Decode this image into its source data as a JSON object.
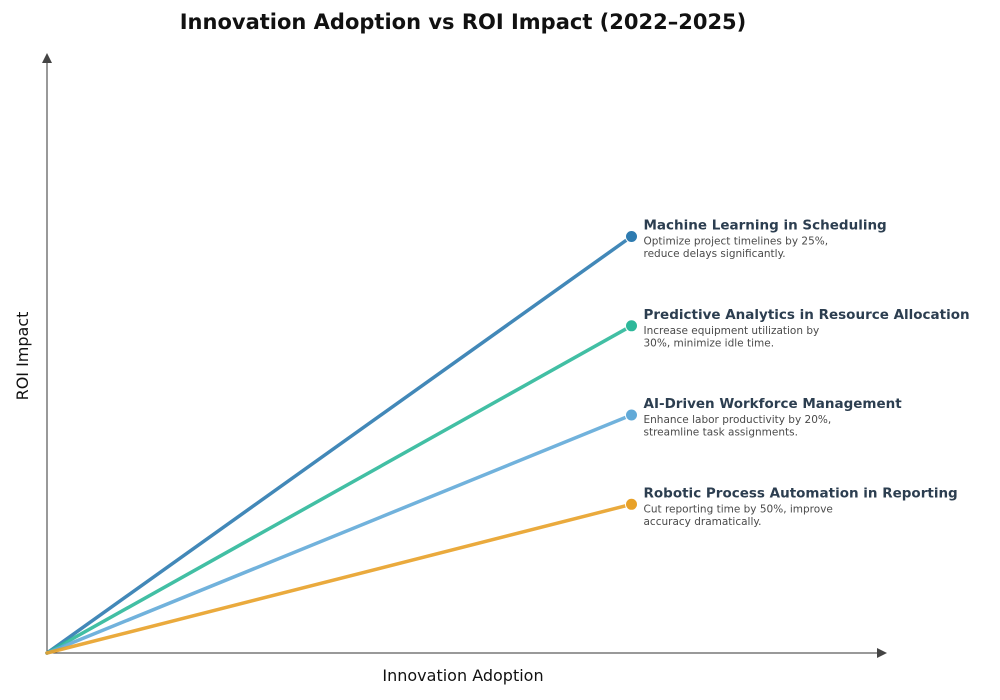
{
  "chart_data": {
    "type": "line",
    "title": "Innovation Adoption vs ROI Impact (2022–2025)",
    "xlabel": "Innovation Adoption",
    "ylabel": "ROI Impact",
    "xlim": [
      0,
      10
    ],
    "ylim": [
      0,
      10
    ],
    "grid": false,
    "series": [
      {
        "name": "Machine Learning in Scheduling",
        "description": [
          "Optimize project timelines by 25%,",
          "reduce delays significantly."
        ],
        "color": "#2e7bb0",
        "points": [
          [
            0,
            0
          ],
          [
            7,
            7
          ]
        ]
      },
      {
        "name": "Predictive Analytics in Resource Allocation",
        "description": [
          "Increase equipment utilization by",
          "30%, minimize idle time."
        ],
        "color": "#2db89a",
        "points": [
          [
            0,
            0
          ],
          [
            7,
            5.5
          ]
        ]
      },
      {
        "name": "AI-Driven Workforce Management",
        "description": [
          "Enhance labor productivity by 20%,",
          "streamline task assignments."
        ],
        "color": "#62aad8",
        "points": [
          [
            0,
            0
          ],
          [
            7,
            4
          ]
        ]
      },
      {
        "name": "Robotic Process Automation in Reporting",
        "description": [
          "Cut reporting time by 50%, improve",
          "accuracy dramatically."
        ],
        "color": "#e8a128",
        "points": [
          [
            0,
            0
          ],
          [
            7,
            2.5
          ]
        ]
      }
    ]
  }
}
